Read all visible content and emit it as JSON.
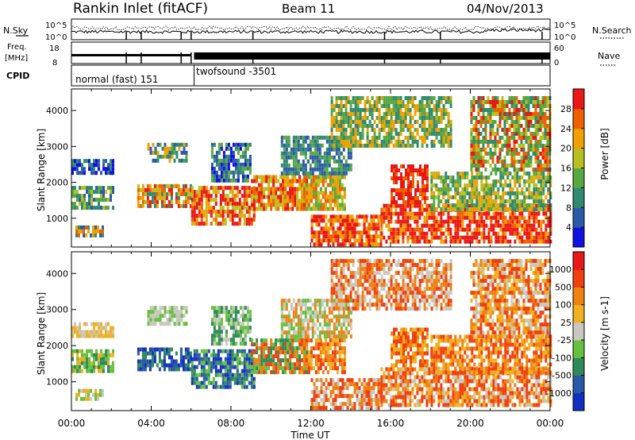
{
  "header": {
    "title": "Rankin Inlet (fitACF)",
    "beam": "Beam 11",
    "date": "04/Nov/2013"
  },
  "status_panels": {
    "nsky_label": "N.Sky",
    "nsearch_label": "N.Search",
    "nsky_ticks": [
      "10^5",
      "10^0"
    ],
    "freq_label_line1": "Freq.",
    "freq_label_line2": "[MHz]",
    "freq_ticks": [
      "8",
      "18"
    ],
    "nave_label": "Nave",
    "nave_ticks": [
      "60",
      "0"
    ],
    "cpid_label": "CPID",
    "cpid_modes": [
      {
        "name": "normal (fast) 151",
        "start_hour": 0
      },
      {
        "name": "twofsound -3501",
        "start_hour": 6.15
      }
    ],
    "gap_hours": [
      2.75,
      3.5,
      5.5,
      6.0,
      9.1,
      15.7,
      18.5,
      23.6
    ]
  },
  "chart_data": [
    {
      "type": "heatmap",
      "name": "power-panel",
      "ylabel": "Slant Range [km]",
      "xlim_hours": [
        0,
        24
      ],
      "ylim": [
        200,
        4600
      ],
      "yticks": [
        1000,
        2000,
        3000,
        4000
      ],
      "colorbar": {
        "label": "Power [dB]",
        "ticks": [
          "4",
          "8",
          "12",
          "16",
          "20",
          "24",
          "28"
        ],
        "colors": [
          "#1010e0",
          "#2c5aa8",
          "#2f8a70",
          "#58a840",
          "#b8c020",
          "#f0a000",
          "#f06000",
          "#e81818"
        ]
      },
      "regions": [
        {
          "x0": 0.0,
          "x1": 2.1,
          "y0": 1300,
          "y1": 1900,
          "mix": [
            1,
            2,
            3,
            4
          ]
        },
        {
          "x0": 0.0,
          "x1": 2.1,
          "y0": 2300,
          "y1": 2650,
          "mix": [
            0,
            1,
            2
          ]
        },
        {
          "x0": 0.2,
          "x1": 1.6,
          "y0": 500,
          "y1": 800,
          "mix": [
            1,
            2,
            5,
            6
          ]
        },
        {
          "x0": 3.3,
          "x1": 6.0,
          "y0": 1350,
          "y1": 1950,
          "mix": [
            2,
            4,
            5,
            6,
            7
          ]
        },
        {
          "x0": 3.8,
          "x1": 5.8,
          "y0": 2600,
          "y1": 3100,
          "mix": [
            1,
            2,
            3,
            5
          ]
        },
        {
          "x0": 6.0,
          "x1": 9.2,
          "y0": 900,
          "y1": 1900,
          "mix": [
            4,
            5,
            6,
            7,
            7
          ]
        },
        {
          "x0": 7.0,
          "x1": 9.0,
          "y0": 2100,
          "y1": 3100,
          "mix": [
            0,
            1,
            2,
            3
          ]
        },
        {
          "x0": 9.0,
          "x1": 11.8,
          "y0": 1300,
          "y1": 2200,
          "mix": [
            4,
            5,
            6,
            7
          ]
        },
        {
          "x0": 11.5,
          "x1": 13.7,
          "y0": 1300,
          "y1": 2200,
          "mix": [
            3,
            4,
            5,
            6
          ]
        },
        {
          "x0": 10.5,
          "x1": 14.0,
          "y0": 2300,
          "y1": 3300,
          "mix": [
            1,
            2,
            3
          ]
        },
        {
          "x0": 12.0,
          "x1": 15.5,
          "y0": 300,
          "y1": 1100,
          "mix": [
            5,
            6,
            7,
            7
          ]
        },
        {
          "x0": 15.5,
          "x1": 24.0,
          "y0": 300,
          "y1": 1400,
          "mix": [
            6,
            7,
            7,
            7,
            5
          ]
        },
        {
          "x0": 16.0,
          "x1": 17.8,
          "y0": 1400,
          "y1": 2500,
          "mix": [
            6,
            7,
            7
          ]
        },
        {
          "x0": 18.0,
          "x1": 24.0,
          "y0": 1300,
          "y1": 2300,
          "mix": [
            2,
            3,
            4,
            5
          ]
        },
        {
          "x0": 20.0,
          "x1": 24.0,
          "y0": 2300,
          "y1": 4400,
          "mix": [
            2,
            3,
            4,
            6,
            7
          ]
        },
        {
          "x0": 13.0,
          "x1": 19.0,
          "y0": 3000,
          "y1": 4400,
          "mix": [
            2,
            3,
            5
          ]
        }
      ]
    },
    {
      "type": "heatmap",
      "name": "velocity-panel",
      "ylabel": "Slant Range [km]",
      "xlabel": "Time UT",
      "xlim_hours": [
        0,
        24
      ],
      "xticks": [
        "00:00",
        "04:00",
        "08:00",
        "12:00",
        "16:00",
        "20:00",
        "00:00"
      ],
      "ylim": [
        200,
        4600
      ],
      "yticks": [
        1000,
        2000,
        3000,
        4000
      ],
      "colorbar": {
        "label": "Velocity [m s-1]",
        "ticks": [
          "1000",
          "500",
          "100",
          "25",
          "-25",
          "-100",
          "-500",
          "-1000"
        ],
        "colors": [
          "#1030c0",
          "#2a58a8",
          "#2f8a58",
          "#68c040",
          "#c8c8c0",
          "#f0b020",
          "#f08010",
          "#f04010",
          "#e81818"
        ]
      },
      "regions": [
        {
          "x0": 0.0,
          "x1": 2.1,
          "y0": 1300,
          "y1": 1900,
          "mix": [
            2,
            3,
            3,
            5
          ]
        },
        {
          "x0": 0.0,
          "x1": 2.1,
          "y0": 2300,
          "y1": 2650,
          "mix": [
            4,
            5
          ]
        },
        {
          "x0": 0.2,
          "x1": 1.6,
          "y0": 500,
          "y1": 800,
          "mix": [
            3,
            4,
            5
          ]
        },
        {
          "x0": 3.3,
          "x1": 6.0,
          "y0": 1350,
          "y1": 1950,
          "mix": [
            0,
            1,
            2
          ]
        },
        {
          "x0": 3.8,
          "x1": 5.8,
          "y0": 2600,
          "y1": 3100,
          "mix": [
            4,
            4,
            3
          ]
        },
        {
          "x0": 6.0,
          "x1": 9.2,
          "y0": 900,
          "y1": 1900,
          "mix": [
            0,
            1,
            2,
            3
          ]
        },
        {
          "x0": 7.0,
          "x1": 9.0,
          "y0": 2100,
          "y1": 3100,
          "mix": [
            2,
            3,
            4
          ]
        },
        {
          "x0": 9.0,
          "x1": 11.8,
          "y0": 1300,
          "y1": 2200,
          "mix": [
            2,
            3,
            6,
            7
          ]
        },
        {
          "x0": 11.5,
          "x1": 13.7,
          "y0": 1300,
          "y1": 2200,
          "mix": [
            6,
            7,
            5
          ]
        },
        {
          "x0": 10.5,
          "x1": 14.0,
          "y0": 2300,
          "y1": 3300,
          "mix": [
            3,
            4,
            6
          ]
        },
        {
          "x0": 12.0,
          "x1": 15.5,
          "y0": 300,
          "y1": 1100,
          "mix": [
            4,
            6,
            7
          ]
        },
        {
          "x0": 15.5,
          "x1": 24.0,
          "y0": 300,
          "y1": 1400,
          "mix": [
            5,
            6,
            7,
            7,
            4
          ]
        },
        {
          "x0": 16.0,
          "x1": 17.8,
          "y0": 1400,
          "y1": 2500,
          "mix": [
            6,
            7,
            5
          ]
        },
        {
          "x0": 18.0,
          "x1": 24.0,
          "y0": 1300,
          "y1": 2300,
          "mix": [
            5,
            6,
            7
          ]
        },
        {
          "x0": 20.0,
          "x1": 24.0,
          "y0": 2300,
          "y1": 4400,
          "mix": [
            6,
            7,
            5,
            4
          ]
        },
        {
          "x0": 13.0,
          "x1": 19.0,
          "y0": 3000,
          "y1": 4400,
          "mix": [
            6,
            7,
            4
          ]
        }
      ]
    }
  ]
}
